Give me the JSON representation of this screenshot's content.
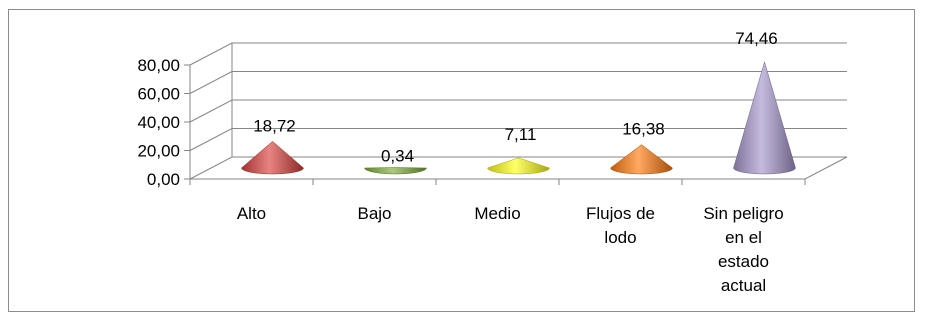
{
  "chart_data": {
    "type": "bar",
    "style": "3d-cone",
    "categories": [
      "Alto",
      "Bajo",
      "Medio",
      "Flujos de lodo",
      "Sin peligro en el estado actual"
    ],
    "values": [
      18.72,
      0.34,
      7.11,
      16.38,
      74.46
    ],
    "data_labels": [
      "18,72",
      "0,34",
      "7,11",
      "16,38",
      "74,46"
    ],
    "category_labels": [
      [
        "Alto"
      ],
      [
        "Bajo"
      ],
      [
        "Medio"
      ],
      [
        "Flujos de",
        "lodo"
      ],
      [
        "Sin peligro",
        "en el",
        "estado",
        "actual"
      ]
    ],
    "colors": [
      "#d9413e",
      "#7fae3a",
      "#ffff1a",
      "#ff7a0f",
      "#a897cc"
    ],
    "y_ticks": [
      "0,00",
      "20,00",
      "40,00",
      "60,00",
      "80,00"
    ],
    "ylim": [
      0,
      80
    ],
    "grid": true,
    "legend": "none"
  }
}
